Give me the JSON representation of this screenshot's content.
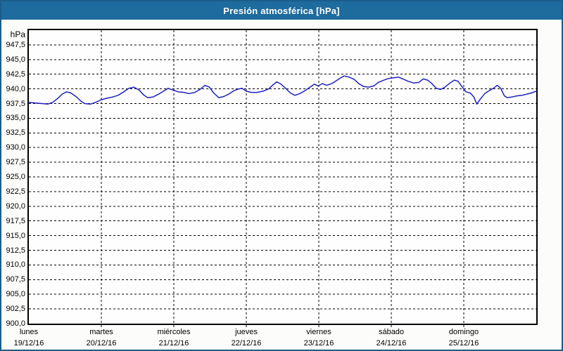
{
  "window": {
    "title": "Presión atmosférica [hPa]"
  },
  "colors": {
    "titlebar_bg": "#1E6B9D",
    "frame_border": "#1A5E8C",
    "plot_border": "#000000",
    "grid": "#000000",
    "series_line": "#2020C0",
    "background": "#FCFDFA",
    "title_text": "#FFFFFF",
    "label_text": "#000000"
  },
  "chart_data": {
    "type": "line",
    "title": "Presión atmosférica [hPa]",
    "ylabel_unit": "hPa",
    "grid": "dashed",
    "legend": "none",
    "y_axis": {
      "min": 900,
      "max": 950,
      "tick_step": 2.5,
      "tick_labels": [
        "947,5",
        "945,0",
        "942,5",
        "940,0",
        "937,5",
        "935,0",
        "932,5",
        "930,0",
        "927,5",
        "925,0",
        "922,5",
        "920,0",
        "917,5",
        "915,0",
        "912,5",
        "910,0",
        "907,5",
        "905,0",
        "902,5",
        "900,0"
      ]
    },
    "x_axis": {
      "span_days": 7,
      "day_labels": [
        {
          "name": "lunes",
          "date": "19/12/16"
        },
        {
          "name": "martes",
          "date": "20/12/16"
        },
        {
          "name": "miércoles",
          "date": "21/12/16"
        },
        {
          "name": "jueves",
          "date": "22/12/16"
        },
        {
          "name": "viernes",
          "date": "23/12/16"
        },
        {
          "name": "sábado",
          "date": "24/12/16"
        },
        {
          "name": "domingo",
          "date": "25/12/16"
        }
      ]
    },
    "series": [
      {
        "name": "Presión atmosférica",
        "unit": "hPa",
        "points": [
          [
            0.0,
            937.7
          ],
          [
            0.09,
            937.6
          ],
          [
            0.18,
            937.5
          ],
          [
            0.26,
            937.4
          ],
          [
            0.33,
            937.7
          ],
          [
            0.4,
            938.4
          ],
          [
            0.46,
            939.1
          ],
          [
            0.52,
            939.5
          ],
          [
            0.58,
            939.3
          ],
          [
            0.65,
            938.7
          ],
          [
            0.72,
            937.9
          ],
          [
            0.77,
            937.5
          ],
          [
            0.85,
            937.4
          ],
          [
            0.92,
            937.7
          ],
          [
            0.99,
            938.1
          ],
          [
            1.07,
            938.4
          ],
          [
            1.15,
            938.6
          ],
          [
            1.23,
            938.9
          ],
          [
            1.31,
            939.5
          ],
          [
            1.38,
            940.1
          ],
          [
            1.45,
            940.3
          ],
          [
            1.52,
            939.8
          ],
          [
            1.59,
            938.9
          ],
          [
            1.64,
            938.5
          ],
          [
            1.71,
            938.6
          ],
          [
            1.79,
            939.1
          ],
          [
            1.87,
            939.7
          ],
          [
            1.92,
            940.1
          ],
          [
            1.99,
            939.8
          ],
          [
            2.06,
            939.5
          ],
          [
            2.14,
            939.4
          ],
          [
            2.21,
            939.2
          ],
          [
            2.29,
            939.4
          ],
          [
            2.36,
            939.9
          ],
          [
            2.43,
            940.6
          ],
          [
            2.49,
            940.3
          ],
          [
            2.55,
            939.3
          ],
          [
            2.62,
            938.5
          ],
          [
            2.69,
            938.7
          ],
          [
            2.77,
            939.2
          ],
          [
            2.83,
            939.7
          ],
          [
            2.9,
            940.0
          ],
          [
            2.94,
            940.1
          ],
          [
            3.0,
            939.6
          ],
          [
            3.07,
            939.4
          ],
          [
            3.15,
            939.4
          ],
          [
            3.23,
            939.6
          ],
          [
            3.31,
            940.0
          ],
          [
            3.37,
            940.7
          ],
          [
            3.42,
            941.2
          ],
          [
            3.48,
            940.8
          ],
          [
            3.55,
            940.0
          ],
          [
            3.61,
            939.3
          ],
          [
            3.67,
            938.9
          ],
          [
            3.74,
            939.2
          ],
          [
            3.81,
            939.7
          ],
          [
            3.88,
            940.3
          ],
          [
            3.94,
            940.8
          ],
          [
            3.99,
            940.5
          ],
          [
            4.05,
            940.9
          ],
          [
            4.11,
            940.6
          ],
          [
            4.18,
            940.9
          ],
          [
            4.23,
            941.3
          ],
          [
            4.29,
            941.8
          ],
          [
            4.35,
            942.2
          ],
          [
            4.42,
            942.0
          ],
          [
            4.49,
            941.6
          ],
          [
            4.55,
            940.9
          ],
          [
            4.62,
            940.4
          ],
          [
            4.69,
            940.3
          ],
          [
            4.76,
            940.5
          ],
          [
            4.82,
            941.1
          ],
          [
            4.9,
            941.5
          ],
          [
            4.97,
            941.8
          ],
          [
            5.04,
            941.9
          ],
          [
            5.1,
            942.0
          ],
          [
            5.16,
            941.7
          ],
          [
            5.23,
            941.3
          ],
          [
            5.31,
            941.0
          ],
          [
            5.38,
            941.1
          ],
          [
            5.44,
            941.7
          ],
          [
            5.5,
            941.5
          ],
          [
            5.56,
            940.9
          ],
          [
            5.62,
            940.1
          ],
          [
            5.68,
            939.9
          ],
          [
            5.74,
            940.3
          ],
          [
            5.81,
            941.0
          ],
          [
            5.87,
            941.5
          ],
          [
            5.92,
            941.3
          ],
          [
            5.98,
            940.3
          ],
          [
            6.03,
            939.5
          ],
          [
            6.09,
            939.3
          ],
          [
            6.14,
            938.6
          ],
          [
            6.18,
            937.4
          ],
          [
            6.23,
            938.3
          ],
          [
            6.29,
            939.2
          ],
          [
            6.35,
            939.7
          ],
          [
            6.41,
            940.1
          ],
          [
            6.46,
            940.6
          ],
          [
            6.51,
            940.1
          ],
          [
            6.56,
            938.8
          ],
          [
            6.6,
            938.5
          ],
          [
            6.66,
            938.6
          ],
          [
            6.73,
            938.8
          ],
          [
            6.8,
            938.9
          ],
          [
            6.87,
            939.1
          ],
          [
            6.93,
            939.3
          ],
          [
            7.0,
            939.6
          ]
        ]
      }
    ]
  }
}
